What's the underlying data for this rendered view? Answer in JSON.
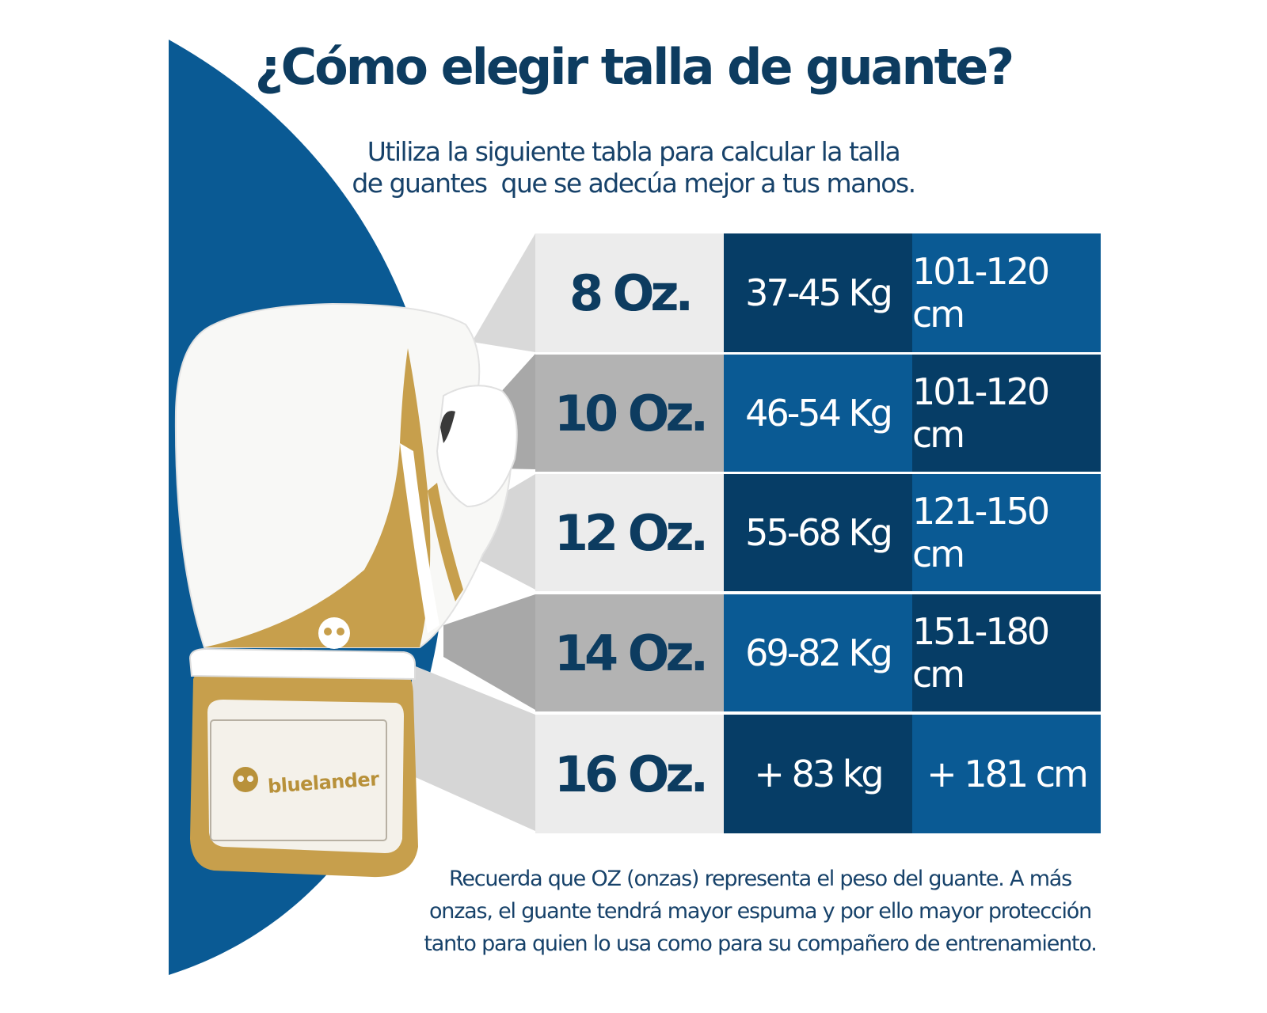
{
  "title": "¿Cómo elegir talla de guante?",
  "subtitle": {
    "line1": "Utiliza la siguiente tabla para calcular la talla",
    "line2": "de guantes  que se adecúa mejor a tus manos."
  },
  "table": {
    "rows": [
      {
        "size": "8 Oz.",
        "weight": "37-45 Kg",
        "height": "101-120 cm"
      },
      {
        "size": "10 Oz.",
        "weight": "46-54 Kg",
        "height": "101-120 cm"
      },
      {
        "size": "12 Oz.",
        "weight": "55-68 Kg",
        "height": "121-150 cm"
      },
      {
        "size": "14 Oz.",
        "weight": "69-82 Kg",
        "height": "151-180 cm"
      },
      {
        "size": "16 Oz.",
        "weight": "+ 83 kg",
        "height": "+ 181 cm"
      }
    ]
  },
  "footnote": {
    "line1": "Recuerda que OZ (onzas) representa el peso del guante. A más",
    "line2": "onzas, el guante tendrá mayor espuma y por ello mayor protección",
    "line3": "tanto para quien lo usa como para su compañero de entrenamiento."
  },
  "brand": {
    "logo_text": "bluelander",
    "icon": "bluelander-logo-icon"
  },
  "colors": {
    "navy": "#063d66",
    "blue": "#0a5a94",
    "light_gray": "#ececec",
    "mid_gray": "#b3b3b3",
    "gold": "#b8913a"
  }
}
